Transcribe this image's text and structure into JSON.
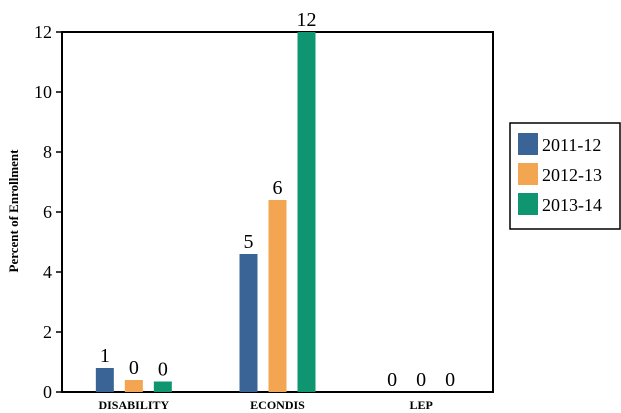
{
  "chart_data": {
    "type": "bar",
    "title": "",
    "xlabel": "",
    "ylabel": "Percent of Enrollment",
    "ylim": [
      0,
      12
    ],
    "yticks": [
      0,
      2,
      4,
      6,
      8,
      10,
      12
    ],
    "categories": [
      "DISABILITY",
      "ECONDIS",
      "LEP"
    ],
    "series": [
      {
        "name": "2011-12",
        "color": "#3a6496",
        "values": [
          0.8,
          4.6,
          0
        ],
        "labels": [
          "1",
          "5",
          "0"
        ]
      },
      {
        "name": "2012-13",
        "color": "#f3a552",
        "values": [
          0.4,
          6.4,
          0
        ],
        "labels": [
          "0",
          "6",
          "0"
        ]
      },
      {
        "name": "2013-14",
        "color": "#0f9670",
        "values": [
          0.35,
          12,
          0
        ],
        "labels": [
          "0",
          "12",
          "0"
        ]
      }
    ],
    "legend_position": "right",
    "grid": false
  }
}
